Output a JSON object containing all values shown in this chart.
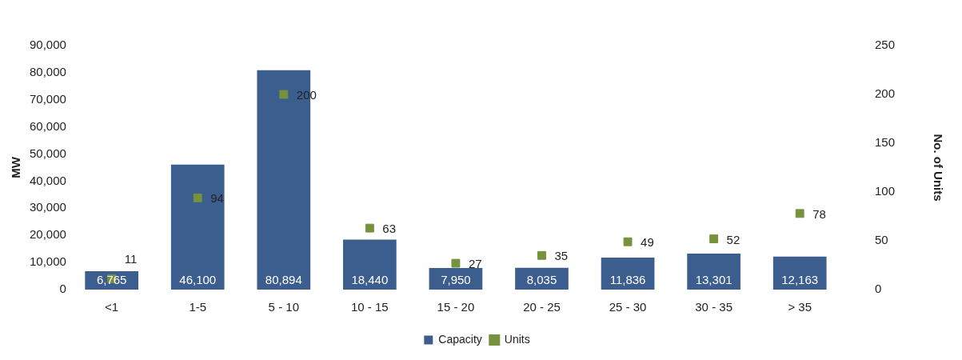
{
  "chart_data": {
    "type": "bar",
    "categories": [
      "<1",
      "1-5",
      "5 - 10",
      "10 - 15",
      "15 - 20",
      "20 - 25",
      "25 - 30",
      "30 - 35",
      "> 35"
    ],
    "series": [
      {
        "name": "Capacity",
        "color": "#3c5e8e",
        "values": [
          6765,
          46100,
          80894,
          18440,
          7950,
          8035,
          11836,
          13301,
          12163
        ],
        "value_labels": [
          "6,765",
          "46,100",
          "80,894",
          "18,440",
          "7,950",
          "8,035",
          "11,836",
          "13,301",
          "12,163"
        ]
      },
      {
        "name": "Units",
        "type": "scatter",
        "axis": "y2",
        "color": "#76923c",
        "values": [
          11,
          94,
          200,
          63,
          27,
          35,
          49,
          52,
          78
        ]
      }
    ],
    "ylabel": "MW",
    "y2label": "No. of Units",
    "ylim": [
      0,
      90000
    ],
    "yticks": [
      0,
      {
        "value": 10000,
        "label": "10,000"
      },
      {
        "value": 20000,
        "label": "20,000"
      },
      {
        "value": 30000,
        "label": "30,000"
      },
      {
        "value": 40000,
        "label": "40,000"
      },
      {
        "value": 50000,
        "label": "50,000"
      },
      {
        "value": 60000,
        "label": "60,000"
      },
      {
        "value": 70000,
        "label": "70,000"
      },
      {
        "value": 80000,
        "label": "80,000"
      },
      {
        "value": 90000,
        "label": "90,000"
      }
    ],
    "y2lim": [
      0,
      250
    ],
    "y2ticks": [
      0,
      50,
      100,
      150,
      200,
      250
    ],
    "data_labels": true,
    "grid": false,
    "legend": "bottom",
    "marker": "square"
  }
}
